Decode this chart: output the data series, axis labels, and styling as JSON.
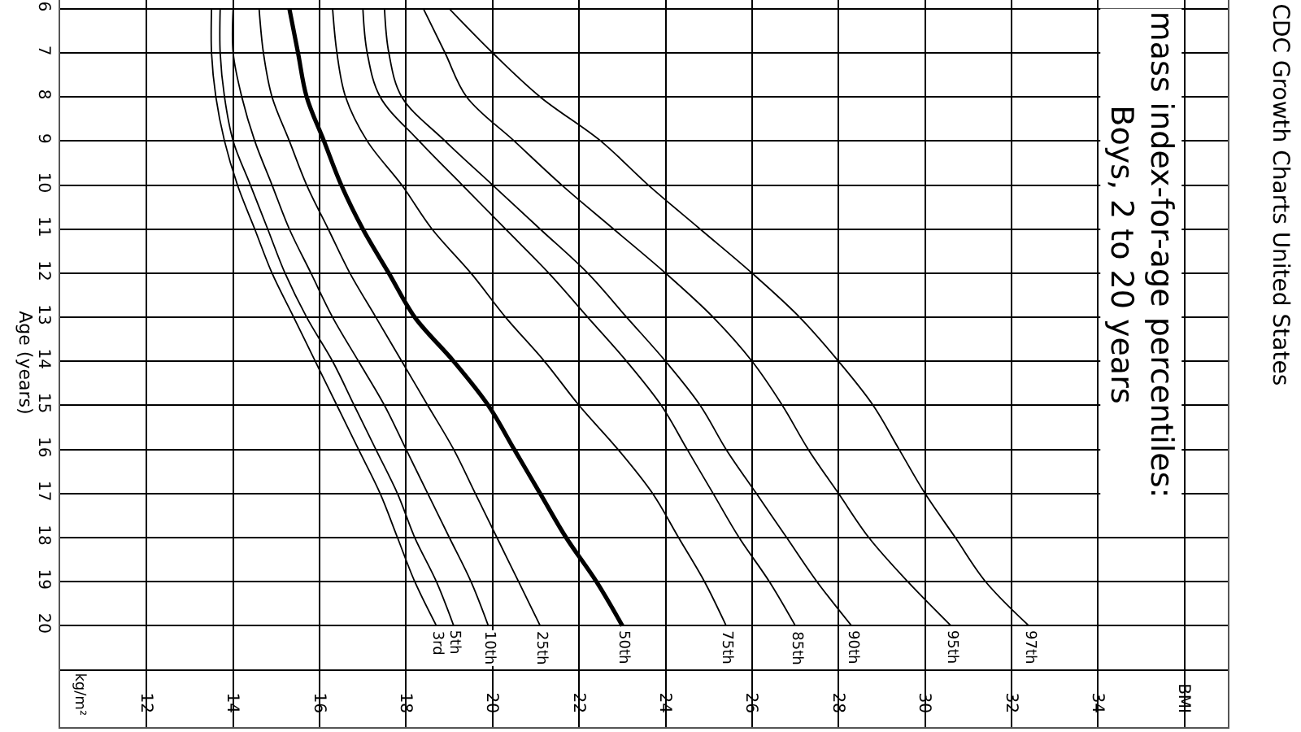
{
  "chart_data": {
    "type": "line",
    "orientation": "horizontal",
    "title": "CDC Growth Charts United States",
    "subtitle": "mass index-for-age percentiles:\nBoys, 2 to 20 years",
    "annotations": [
      "kg/m²"
    ],
    "ylabel": "Age (years)",
    "x": [
      6,
      7,
      8,
      9,
      10,
      11,
      12,
      13,
      14,
      15,
      16,
      17,
      18,
      19,
      20
    ],
    "series": [
      {
        "name": "3rd",
        "color": "#000000",
        "values": [
          13.5,
          13.5,
          13.6,
          13.8,
          14.1,
          14.5,
          14.9,
          15.4,
          15.9,
          16.4,
          16.9,
          17.4,
          17.8,
          18.2,
          18.7
        ]
      },
      {
        "name": "5th",
        "color": "#000000",
        "values": [
          13.7,
          13.7,
          13.8,
          14.0,
          14.4,
          14.8,
          15.2,
          15.7,
          16.3,
          16.8,
          17.3,
          17.8,
          18.2,
          18.7,
          19.1
        ]
      },
      {
        "name": "10th",
        "color": "#000000",
        "values": [
          14.0,
          14.0,
          14.2,
          14.5,
          14.9,
          15.3,
          15.8,
          16.3,
          16.9,
          17.5,
          18.0,
          18.5,
          19.0,
          19.5,
          19.9
        ]
      },
      {
        "name": "25th",
        "color": "#000000",
        "values": [
          14.6,
          14.7,
          14.9,
          15.3,
          15.7,
          16.2,
          16.7,
          17.3,
          17.9,
          18.5,
          19.1,
          19.6,
          20.1,
          20.6,
          21.1
        ]
      },
      {
        "name": "50th",
        "color": "#000000",
        "values": [
          15.3,
          15.5,
          15.7,
          16.1,
          16.5,
          17.0,
          17.6,
          18.2,
          19.1,
          19.9,
          20.5,
          21.1,
          21.7,
          22.4,
          23.0
        ]
      },
      {
        "name": "75th",
        "color": "#000000",
        "values": [
          16.3,
          16.4,
          16.6,
          17.1,
          17.9,
          18.6,
          19.5,
          20.3,
          21.2,
          22.0,
          22.9,
          23.7,
          24.3,
          24.9,
          25.4
        ]
      },
      {
        "name": "85th",
        "color": "#000000",
        "values": [
          17.0,
          17.1,
          17.4,
          18.3,
          19.3,
          20.3,
          21.3,
          22.2,
          23.1,
          23.9,
          24.5,
          25.1,
          25.7,
          26.4,
          27.0
        ]
      },
      {
        "name": "90th",
        "color": "#000000",
        "values": [
          17.5,
          17.6,
          17.9,
          18.9,
          20.0,
          21.1,
          22.2,
          23.1,
          24.0,
          24.8,
          25.4,
          26.1,
          26.8,
          27.5,
          28.3
        ]
      },
      {
        "name": "95th",
        "color": "#000000",
        "values": [
          18.4,
          18.9,
          19.4,
          20.5,
          21.6,
          22.8,
          24.0,
          25.1,
          26.0,
          26.7,
          27.3,
          28.0,
          28.7,
          29.6,
          30.6
        ]
      },
      {
        "name": "97th",
        "color": "#000000",
        "values": [
          19.0,
          20.0,
          21.1,
          22.5,
          23.6,
          24.8,
          26.0,
          27.1,
          28.0,
          28.8,
          29.4,
          30.0,
          30.7,
          31.4,
          32.4
        ]
      }
    ],
    "xlim": [
      10,
      37
    ],
    "xticks": [
      12,
      14,
      16,
      18,
      20,
      22,
      24,
      26,
      28,
      30,
      32,
      34,
      {
        "value": 36,
        "label": "BMI"
      }
    ],
    "ylim": [
      22.3,
      5.8
    ],
    "yticks": [
      6,
      7,
      8,
      9,
      10,
      11,
      12,
      13,
      14,
      15,
      16,
      17,
      18,
      19,
      20,
      {
        "value": 21,
        "label": null
      }
    ],
    "grid": true,
    "legend": false,
    "line_style": "solid",
    "marker": "none"
  }
}
